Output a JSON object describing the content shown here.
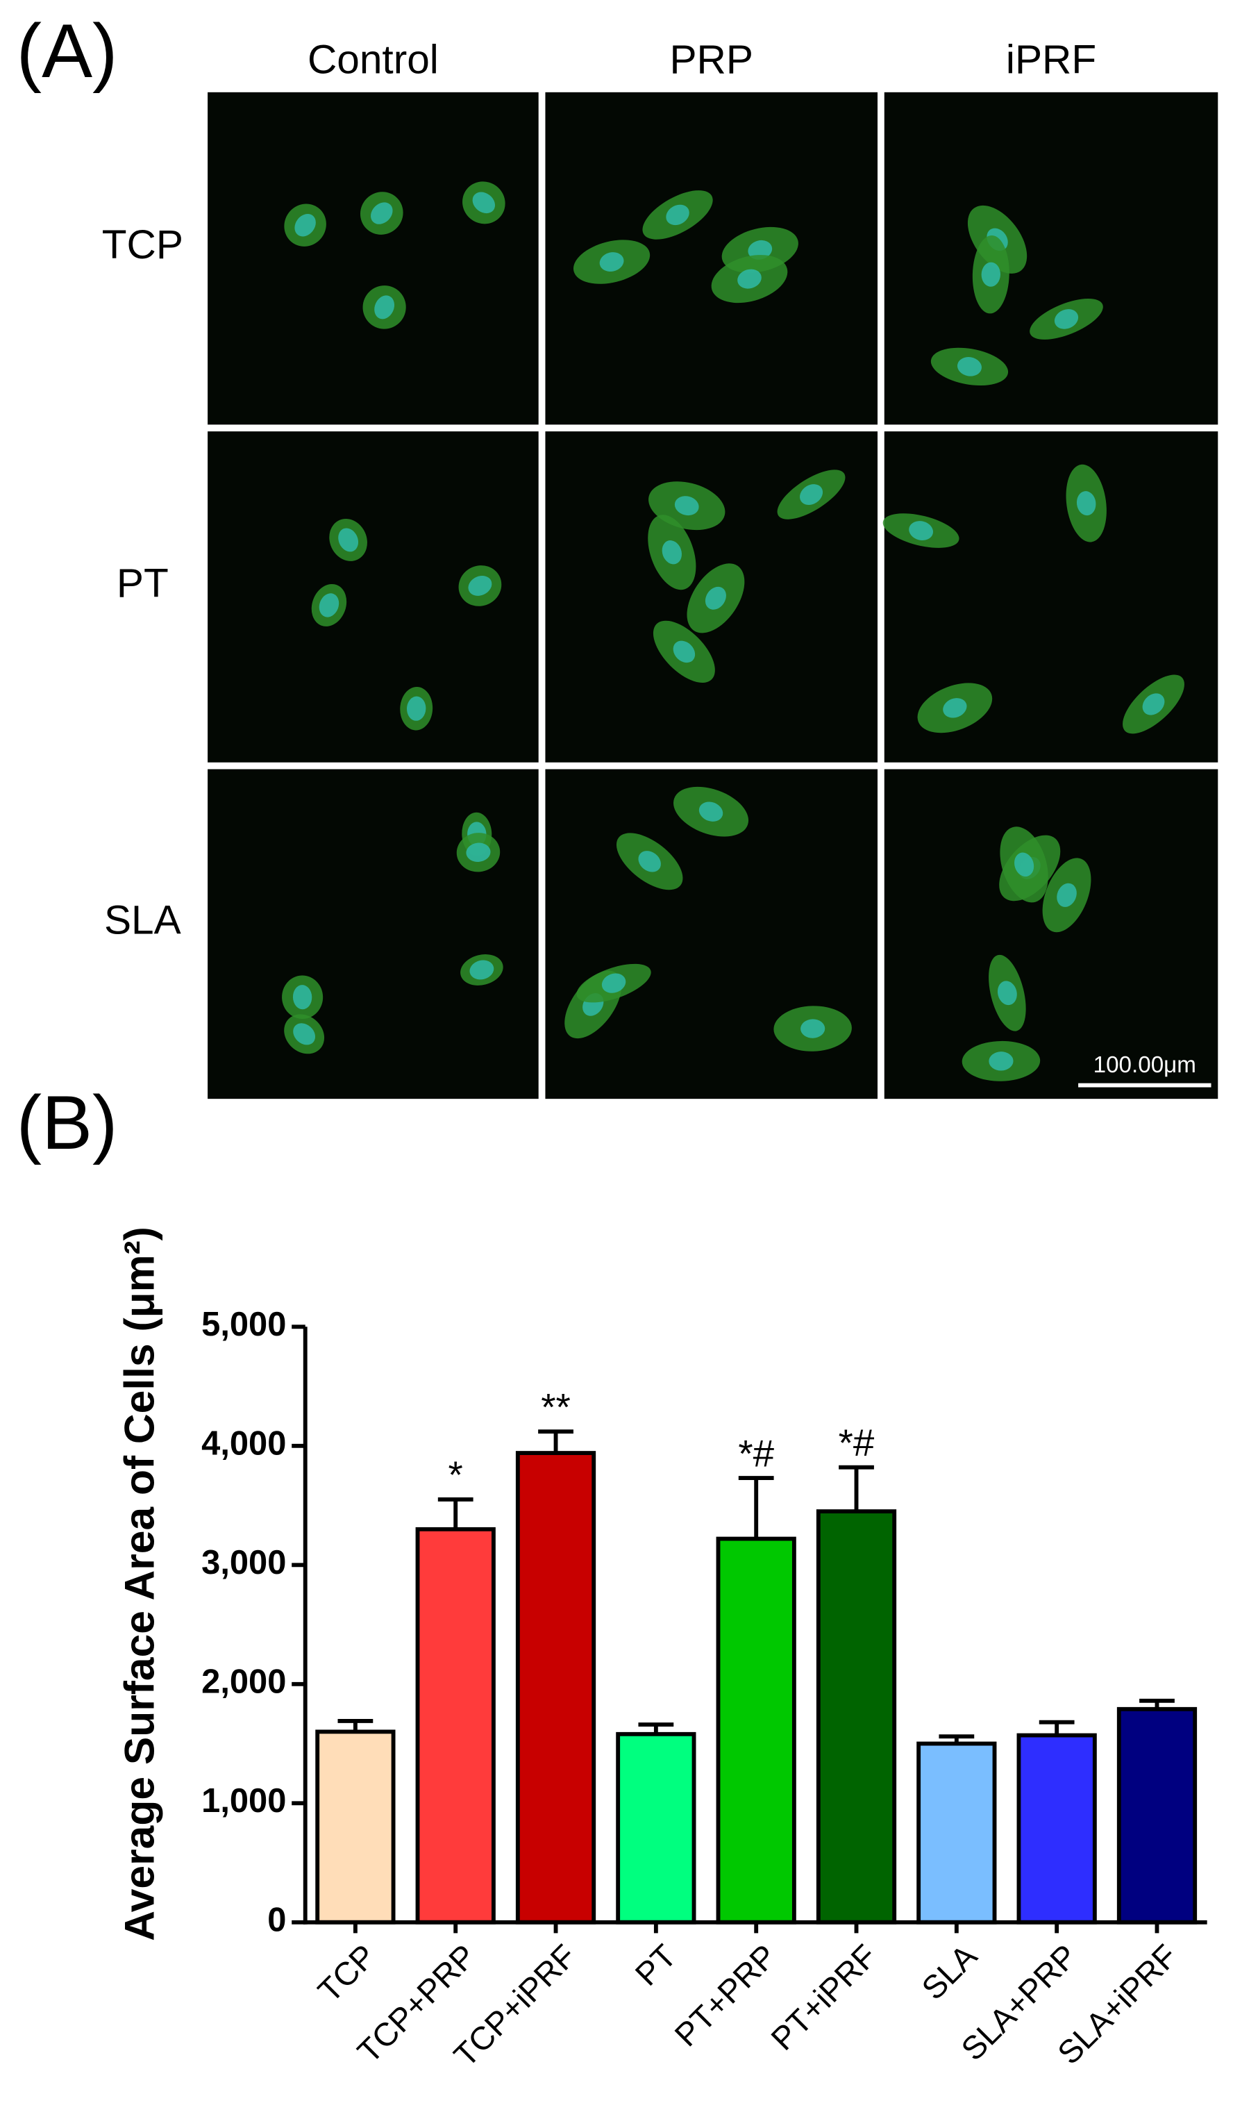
{
  "figure": {
    "panel_a_label": "(A)",
    "columns": [
      "Control",
      "PRP",
      "iPRF"
    ],
    "rows": [
      "TCP",
      "PT",
      "SLA"
    ],
    "scale_bar": "100.00μm",
    "panel_b_label": "(B)"
  },
  "chart_data": {
    "type": "bar",
    "y_label": "Average Surface Area of Cells (μm²)",
    "categories": [
      "TCP",
      "TCP+PRP",
      "TCP+iPRF",
      "PT",
      "PT+PRP",
      "PT+iPRF",
      "SLA",
      "SLA+PRP",
      "SLA+iPRF"
    ],
    "values": [
      1600,
      3300,
      3940,
      1580,
      3220,
      3450,
      1500,
      1570,
      1790
    ],
    "errors": [
      90,
      250,
      180,
      80,
      510,
      370,
      60,
      110,
      70
    ],
    "colors": [
      "#FFDDB8",
      "#FF3B3B",
      "#C80000",
      "#00FF7F",
      "#00C800",
      "#006400",
      "#7ABEFF",
      "#2E2EFF",
      "#000080"
    ],
    "annotations": [
      null,
      "*",
      "**",
      null,
      "*#",
      "*#",
      null,
      null,
      null
    ],
    "ylim": [
      0,
      5000
    ],
    "yticks": [
      0,
      {
        "value": 1000,
        "label": "1,000"
      },
      {
        "value": 2000,
        "label": "2,000"
      },
      {
        "value": 3000,
        "label": "3,000"
      },
      {
        "value": 4000,
        "label": "4,000"
      },
      {
        "value": 5000,
        "label": "5,000"
      }
    ]
  }
}
